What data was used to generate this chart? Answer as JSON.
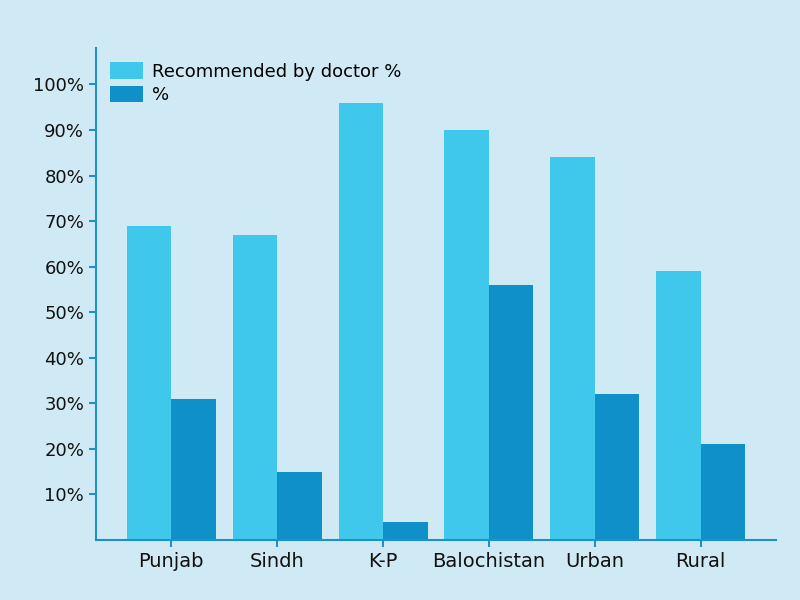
{
  "categories": [
    "Punjab",
    "Sindh",
    "K-P",
    "Balochistan",
    "Urban",
    "Rural"
  ],
  "recommended_by_doctor": [
    69,
    67,
    96,
    90,
    84,
    59
  ],
  "percent": [
    31,
    15,
    4,
    56,
    32,
    21
  ],
  "light_blue": "#40C8EC",
  "dark_blue": "#1090C8",
  "axis_color": "#2090C8",
  "background_color": "#D0EAF5",
  "legend_labels": [
    "Recommended by doctor %",
    "%"
  ],
  "yticks": [
    10,
    20,
    30,
    40,
    50,
    60,
    70,
    80,
    90,
    100
  ],
  "ytick_labels": [
    "10%",
    "20%",
    "30%",
    "40%",
    "50%",
    "60%",
    "70%",
    "80%",
    "90%",
    "100%"
  ],
  "bar_width": 0.42,
  "figsize": [
    8.0,
    6.0
  ],
  "dpi": 100,
  "tick_fontsize": 13,
  "xtick_fontsize": 14,
  "legend_fontsize": 13
}
